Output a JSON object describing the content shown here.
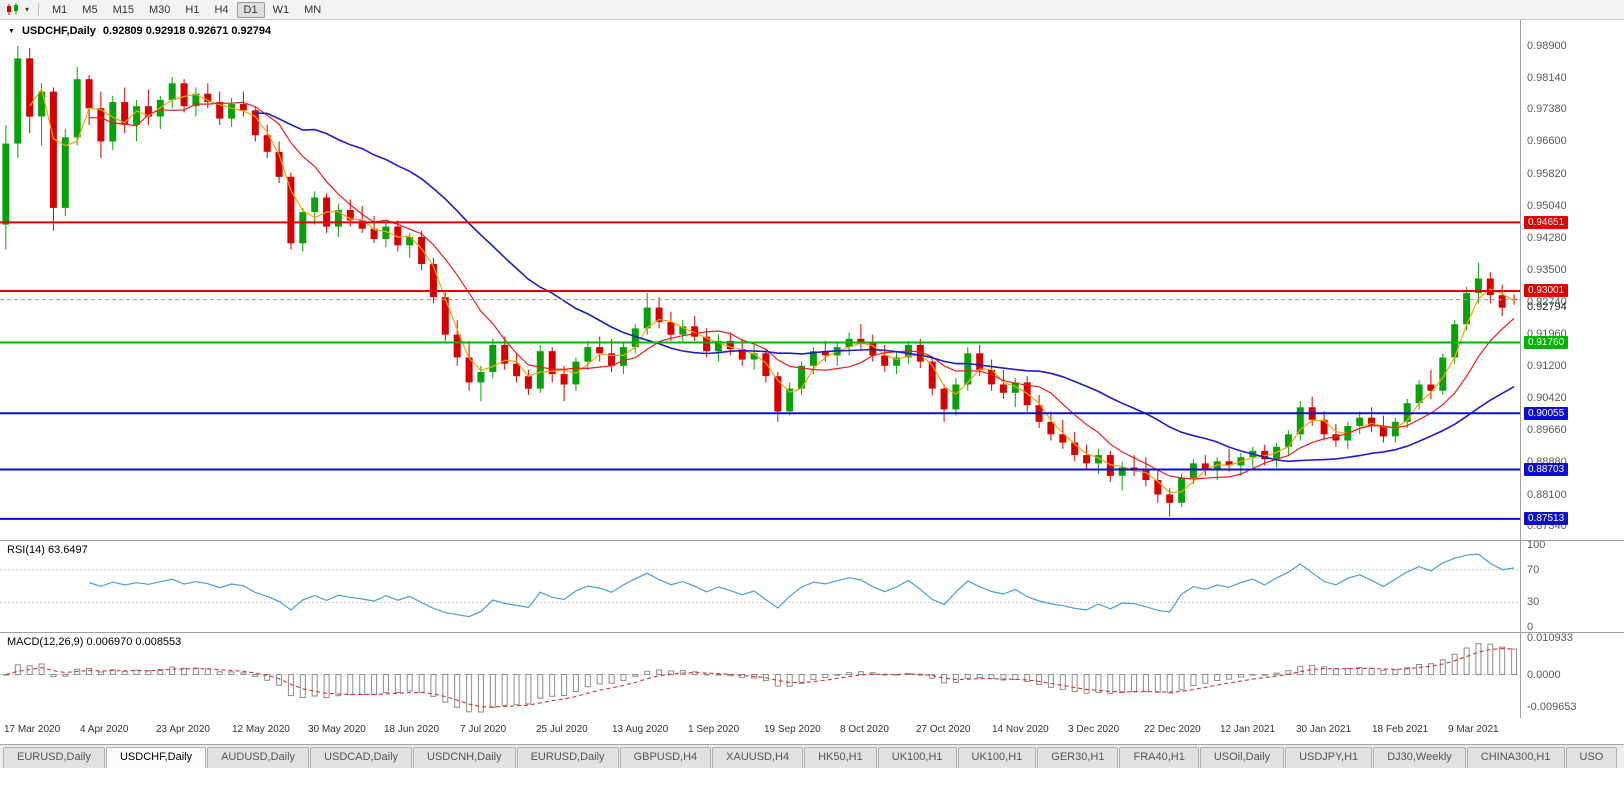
{
  "icons": {
    "chart_dropdown": "▾",
    "title_marker": "▼",
    "scroll_marker": "▲"
  },
  "toolbar": {
    "timeframes": [
      "M1",
      "M5",
      "M15",
      "M30",
      "H1",
      "H4",
      "D1",
      "W1",
      "MN"
    ],
    "active_timeframe": "D1"
  },
  "chart": {
    "title": "USDCHF,Daily",
    "ohlc": "0.92809 0.92918 0.92671 0.92794",
    "bid": "0.92794",
    "price_min": 0.8715,
    "price_max": 0.9938,
    "colors": {
      "up": "#09a109",
      "down": "#d60000"
    },
    "price_axis_ticks": [
      "0.98900",
      "0.98140",
      "0.97380",
      "0.96600",
      "0.95820",
      "0.95040",
      "0.94280",
      "0.93500",
      "0.92740",
      "0.91960",
      "0.91200",
      "0.90420",
      "0.89660",
      "0.88880",
      "0.88100",
      "0.87340"
    ],
    "hlines": [
      {
        "price": "0.94651",
        "color": "#e00000"
      },
      {
        "price": "0.93001",
        "color": "#e00000"
      },
      {
        "price": "0.91760",
        "color": "#00b400"
      },
      {
        "price": "0.90055",
        "color": "#0e0ed0"
      },
      {
        "price": "0.88703",
        "color": "#0e0ed0"
      },
      {
        "price": "0.87513",
        "color": "#0e0ed0"
      }
    ],
    "ma_lines": [
      {
        "period": 3,
        "color": "#f7a400",
        "width": 1.2
      },
      {
        "period": 8,
        "color": "#ee1c1c",
        "width": 1.2
      },
      {
        "period": 22,
        "color": "#1d1dc9",
        "width": 1.6
      }
    ],
    "candles": [
      [
        0.946,
        0.97,
        0.94,
        0.9655
      ],
      [
        0.9655,
        0.989,
        0.962,
        0.986
      ],
      [
        0.986,
        0.9885,
        0.968,
        0.972
      ],
      [
        0.972,
        0.98,
        0.965,
        0.978
      ],
      [
        0.978,
        0.979,
        0.9445,
        0.95
      ],
      [
        0.95,
        0.969,
        0.948,
        0.967
      ],
      [
        0.967,
        0.984,
        0.965,
        0.981
      ],
      [
        0.981,
        0.982,
        0.97,
        0.974
      ],
      [
        0.974,
        0.978,
        0.962,
        0.966
      ],
      [
        0.966,
        0.977,
        0.964,
        0.9755
      ],
      [
        0.9755,
        0.979,
        0.968,
        0.97
      ],
      [
        0.97,
        0.976,
        0.966,
        0.9745
      ],
      [
        0.9745,
        0.9785,
        0.97,
        0.972
      ],
      [
        0.972,
        0.977,
        0.969,
        0.976
      ],
      [
        0.976,
        0.9815,
        0.974,
        0.98
      ],
      [
        0.98,
        0.981,
        0.973,
        0.9745
      ],
      [
        0.9745,
        0.979,
        0.972,
        0.9775
      ],
      [
        0.9775,
        0.98,
        0.974,
        0.9755
      ],
      [
        0.9755,
        0.978,
        0.97,
        0.9715
      ],
      [
        0.9715,
        0.9765,
        0.9695,
        0.975
      ],
      [
        0.975,
        0.978,
        0.972,
        0.9735
      ],
      [
        0.9735,
        0.9745,
        0.966,
        0.9675
      ],
      [
        0.9675,
        0.97,
        0.962,
        0.9635
      ],
      [
        0.9635,
        0.966,
        0.956,
        0.9575
      ],
      [
        0.9575,
        0.9585,
        0.94,
        0.9415
      ],
      [
        0.9415,
        0.95,
        0.9395,
        0.949
      ],
      [
        0.949,
        0.954,
        0.946,
        0.9525
      ],
      [
        0.9525,
        0.9535,
        0.944,
        0.9455
      ],
      [
        0.9455,
        0.951,
        0.943,
        0.9495
      ],
      [
        0.9495,
        0.952,
        0.9455,
        0.947
      ],
      [
        0.947,
        0.9505,
        0.944,
        0.945
      ],
      [
        0.945,
        0.948,
        0.9415,
        0.9425
      ],
      [
        0.9425,
        0.9465,
        0.9405,
        0.9455
      ],
      [
        0.9455,
        0.947,
        0.9395,
        0.941
      ],
      [
        0.941,
        0.944,
        0.938,
        0.943
      ],
      [
        0.943,
        0.9445,
        0.935,
        0.9365
      ],
      [
        0.9365,
        0.938,
        0.927,
        0.9285
      ],
      [
        0.9285,
        0.93,
        0.918,
        0.9195
      ],
      [
        0.9195,
        0.923,
        0.912,
        0.914
      ],
      [
        0.914,
        0.918,
        0.906,
        0.908
      ],
      [
        0.908,
        0.912,
        0.9035,
        0.9105
      ],
      [
        0.9105,
        0.9185,
        0.909,
        0.917
      ],
      [
        0.917,
        0.919,
        0.911,
        0.9125
      ],
      [
        0.9125,
        0.915,
        0.908,
        0.9095
      ],
      [
        0.9095,
        0.911,
        0.905,
        0.9065
      ],
      [
        0.9065,
        0.917,
        0.9055,
        0.9155
      ],
      [
        0.9155,
        0.9165,
        0.908,
        0.91
      ],
      [
        0.91,
        0.912,
        0.9035,
        0.9075
      ],
      [
        0.9075,
        0.914,
        0.906,
        0.913
      ],
      [
        0.913,
        0.918,
        0.911,
        0.9165
      ],
      [
        0.9165,
        0.919,
        0.913,
        0.915
      ],
      [
        0.915,
        0.9185,
        0.9105,
        0.912
      ],
      [
        0.912,
        0.9175,
        0.91,
        0.9165
      ],
      [
        0.9165,
        0.922,
        0.915,
        0.921
      ],
      [
        0.921,
        0.9296,
        0.9195,
        0.926
      ],
      [
        0.926,
        0.9285,
        0.921,
        0.9225
      ],
      [
        0.9225,
        0.925,
        0.918,
        0.9195
      ],
      [
        0.9195,
        0.923,
        0.9175,
        0.9215
      ],
      [
        0.9215,
        0.924,
        0.918,
        0.919
      ],
      [
        0.919,
        0.921,
        0.914,
        0.9155
      ],
      [
        0.9155,
        0.9195,
        0.913,
        0.918
      ],
      [
        0.918,
        0.92,
        0.9145,
        0.916
      ],
      [
        0.916,
        0.9185,
        0.912,
        0.9135
      ],
      [
        0.9135,
        0.917,
        0.911,
        0.915
      ],
      [
        0.915,
        0.916,
        0.908,
        0.9095
      ],
      [
        0.9095,
        0.9105,
        0.8985,
        0.901
      ],
      [
        0.901,
        0.908,
        0.9,
        0.9065
      ],
      [
        0.9065,
        0.913,
        0.905,
        0.912
      ],
      [
        0.912,
        0.9165,
        0.91,
        0.9155
      ],
      [
        0.9155,
        0.918,
        0.913,
        0.9145
      ],
      [
        0.9145,
        0.9175,
        0.912,
        0.9165
      ],
      [
        0.9165,
        0.92,
        0.9145,
        0.9185
      ],
      [
        0.9185,
        0.922,
        0.916,
        0.9175
      ],
      [
        0.9175,
        0.9195,
        0.913,
        0.9145
      ],
      [
        0.9145,
        0.917,
        0.9105,
        0.912
      ],
      [
        0.912,
        0.9155,
        0.91,
        0.914
      ],
      [
        0.914,
        0.918,
        0.9125,
        0.917
      ],
      [
        0.917,
        0.9185,
        0.9115,
        0.913
      ],
      [
        0.913,
        0.914,
        0.905,
        0.9065
      ],
      [
        0.9065,
        0.9075,
        0.8985,
        0.9015
      ],
      [
        0.9015,
        0.909,
        0.9,
        0.9075
      ],
      [
        0.9075,
        0.9165,
        0.906,
        0.915
      ],
      [
        0.915,
        0.917,
        0.9095,
        0.911
      ],
      [
        0.911,
        0.9135,
        0.906,
        0.9075
      ],
      [
        0.9075,
        0.911,
        0.904,
        0.9055
      ],
      [
        0.9055,
        0.909,
        0.902,
        0.908
      ],
      [
        0.908,
        0.9095,
        0.901,
        0.9025
      ],
      [
        0.9025,
        0.905,
        0.897,
        0.8985
      ],
      [
        0.8985,
        0.901,
        0.894,
        0.8955
      ],
      [
        0.8955,
        0.899,
        0.892,
        0.8935
      ],
      [
        0.8935,
        0.896,
        0.889,
        0.8905
      ],
      [
        0.8905,
        0.893,
        0.887,
        0.8885
      ],
      [
        0.8885,
        0.892,
        0.886,
        0.8905
      ],
      [
        0.8905,
        0.8915,
        0.884,
        0.8855
      ],
      [
        0.8855,
        0.889,
        0.882,
        0.8875
      ],
      [
        0.8875,
        0.8905,
        0.8855,
        0.887
      ],
      [
        0.887,
        0.89,
        0.883,
        0.8845
      ],
      [
        0.8845,
        0.887,
        0.879,
        0.881
      ],
      [
        0.881,
        0.8825,
        0.8757,
        0.879
      ],
      [
        0.879,
        0.886,
        0.878,
        0.885
      ],
      [
        0.885,
        0.8895,
        0.8835,
        0.8885
      ],
      [
        0.8885,
        0.8905,
        0.8855,
        0.887
      ],
      [
        0.887,
        0.89,
        0.8845,
        0.889
      ],
      [
        0.889,
        0.892,
        0.8865,
        0.888
      ],
      [
        0.888,
        0.891,
        0.8855,
        0.89
      ],
      [
        0.89,
        0.8925,
        0.8875,
        0.8915
      ],
      [
        0.8915,
        0.893,
        0.888,
        0.8895
      ],
      [
        0.8895,
        0.8935,
        0.8875,
        0.8925
      ],
      [
        0.8925,
        0.8965,
        0.8905,
        0.8955
      ],
      [
        0.8955,
        0.9035,
        0.894,
        0.902
      ],
      [
        0.902,
        0.9045,
        0.8975,
        0.899
      ],
      [
        0.899,
        0.901,
        0.894,
        0.8955
      ],
      [
        0.8955,
        0.898,
        0.8925,
        0.894
      ],
      [
        0.894,
        0.8985,
        0.892,
        0.8975
      ],
      [
        0.8975,
        0.901,
        0.8955,
        0.8995
      ],
      [
        0.8995,
        0.902,
        0.896,
        0.8975
      ],
      [
        0.8975,
        0.9,
        0.8935,
        0.895
      ],
      [
        0.895,
        0.8995,
        0.8935,
        0.8985
      ],
      [
        0.8985,
        0.904,
        0.897,
        0.903
      ],
      [
        0.903,
        0.9085,
        0.9015,
        0.9075
      ],
      [
        0.9075,
        0.911,
        0.904,
        0.906
      ],
      [
        0.906,
        0.915,
        0.905,
        0.914
      ],
      [
        0.914,
        0.923,
        0.9125,
        0.922
      ],
      [
        0.922,
        0.931,
        0.9205,
        0.9295
      ],
      [
        0.9295,
        0.9368,
        0.927,
        0.933
      ],
      [
        0.933,
        0.9345,
        0.927,
        0.929
      ],
      [
        0.929,
        0.9315,
        0.924,
        0.926
      ],
      [
        0.92809,
        0.92918,
        0.92671,
        0.92794
      ]
    ]
  },
  "rsi": {
    "label": "RSI(14) 63.6497",
    "axis": [
      "100",
      "70",
      "30",
      "0"
    ],
    "axis_values": [
      100,
      70,
      30,
      0
    ],
    "levels": [
      70,
      30
    ],
    "color": "#46a0e0"
  },
  "macd": {
    "label": "MACD(12,26,9) 0.006970 0.008553",
    "axis": [
      "0.010933",
      "0.0000",
      "-0.009653"
    ],
    "axis_values": [
      0.010933,
      0,
      -0.009653
    ],
    "hist_color": "#8c8c8c",
    "signal_color": "#e03030"
  },
  "time_axis": [
    "17 Mar 2020",
    "4 Apr 2020",
    "23 Apr 2020",
    "12 May 2020",
    "30 May 2020",
    "18 Jun 2020",
    "7 Jul 2020",
    "25 Jul 2020",
    "13 Aug 2020",
    "1 Sep 2020",
    "19 Sep 2020",
    "8 Oct 2020",
    "27 Oct 2020",
    "14 Nov 2020",
    "3 Dec 2020",
    "22 Dec 2020",
    "12 Jan 2021",
    "30 Jan 2021",
    "18 Feb 2021",
    "9 Mar 2021"
  ],
  "tabs": {
    "active_index": 1,
    "items": [
      "EURUSD,Daily",
      "USDCHF,Daily",
      "AUDUSD,Daily",
      "USDCAD,Daily",
      "USDCNH,Daily",
      "EURUSD,Daily",
      "GBPUSD,H4",
      "XAUUSD,H4",
      "HK50,H1",
      "UK100,H1",
      "UK100,H1",
      "GER30,H1",
      "FRA40,H1",
      "USOil,Daily",
      "USDJPY,H1",
      "DJ30,Weekly",
      "CHINA300,H1",
      "USO"
    ]
  }
}
